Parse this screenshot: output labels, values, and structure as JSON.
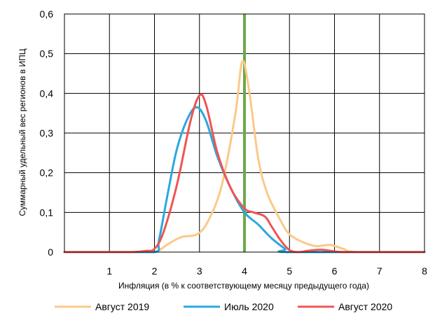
{
  "chart_data": {
    "type": "line",
    "xlabel": "Инфляция (в % к соответствующему месяцу предыдущего года)",
    "ylabel": "Суммарный удельный вес регионов в ИПЦ",
    "xlim": [
      0,
      8
    ],
    "ylim": [
      0,
      0.6
    ],
    "x_ticks": [
      1,
      2,
      3,
      4,
      5,
      6,
      7,
      8
    ],
    "x_tick_labels": [
      "1",
      "2",
      "3",
      "4",
      "5",
      "6",
      "7",
      "8"
    ],
    "y_ticks": [
      0,
      0.1,
      0.2,
      0.3,
      0.4,
      0.5,
      0.6
    ],
    "y_tick_labels": [
      "0",
      "0,1",
      "0,2",
      "0,3",
      "0,4",
      "0,5",
      "0,6"
    ],
    "grid": true,
    "legend_position": "bottom",
    "reference_line": {
      "x": 4,
      "color": "#6aaa4a"
    },
    "series": [
      {
        "name": "Август 2019",
        "color": "#fbc98a",
        "points": [
          [
            0,
            0
          ],
          [
            1,
            0
          ],
          [
            1.5,
            0
          ],
          [
            2,
            0
          ],
          [
            2.3,
            0.02
          ],
          [
            2.6,
            0.038
          ],
          [
            2.95,
            0.045
          ],
          [
            3.2,
            0.08
          ],
          [
            3.5,
            0.17
          ],
          [
            3.8,
            0.35
          ],
          [
            3.95,
            0.48
          ],
          [
            4.1,
            0.41
          ],
          [
            4.3,
            0.24
          ],
          [
            4.5,
            0.15
          ],
          [
            4.8,
            0.08
          ],
          [
            5,
            0.045
          ],
          [
            5.3,
            0.025
          ],
          [
            5.6,
            0.015
          ],
          [
            5.9,
            0.018
          ],
          [
            6.2,
            0.008
          ],
          [
            6.5,
            0
          ],
          [
            8,
            0
          ]
        ]
      },
      {
        "name": "Июль 2020",
        "color": "#2aa8de",
        "points": [
          [
            0,
            0
          ],
          [
            1,
            0
          ],
          [
            2,
            0
          ],
          [
            2.1,
            0.03
          ],
          [
            2.3,
            0.15
          ],
          [
            2.5,
            0.26
          ],
          [
            2.75,
            0.34
          ],
          [
            2.95,
            0.365
          ],
          [
            3.15,
            0.33
          ],
          [
            3.4,
            0.24
          ],
          [
            3.7,
            0.16
          ],
          [
            4,
            0.1
          ],
          [
            4.3,
            0.07
          ],
          [
            4.6,
            0.035
          ],
          [
            4.9,
            0.008
          ],
          [
            5,
            0
          ],
          [
            8,
            0
          ]
        ]
      },
      {
        "name": "Август 2020",
        "color": "#f05454",
        "points": [
          [
            0,
            0
          ],
          [
            1,
            0
          ],
          [
            1.5,
            0
          ],
          [
            1.8,
            0.003
          ],
          [
            2,
            0.008
          ],
          [
            2.2,
            0.05
          ],
          [
            2.5,
            0.17
          ],
          [
            2.8,
            0.33
          ],
          [
            3,
            0.395
          ],
          [
            3.15,
            0.37
          ],
          [
            3.4,
            0.25
          ],
          [
            3.7,
            0.16
          ],
          [
            4,
            0.11
          ],
          [
            4.2,
            0.1
          ],
          [
            4.45,
            0.09
          ],
          [
            4.6,
            0.065
          ],
          [
            4.8,
            0.03
          ],
          [
            5,
            0.005
          ],
          [
            5.2,
            0
          ],
          [
            5.4,
            0.003
          ],
          [
            5.7,
            0.006
          ],
          [
            6,
            0.002
          ],
          [
            6.3,
            0
          ],
          [
            8,
            0
          ]
        ]
      }
    ]
  }
}
